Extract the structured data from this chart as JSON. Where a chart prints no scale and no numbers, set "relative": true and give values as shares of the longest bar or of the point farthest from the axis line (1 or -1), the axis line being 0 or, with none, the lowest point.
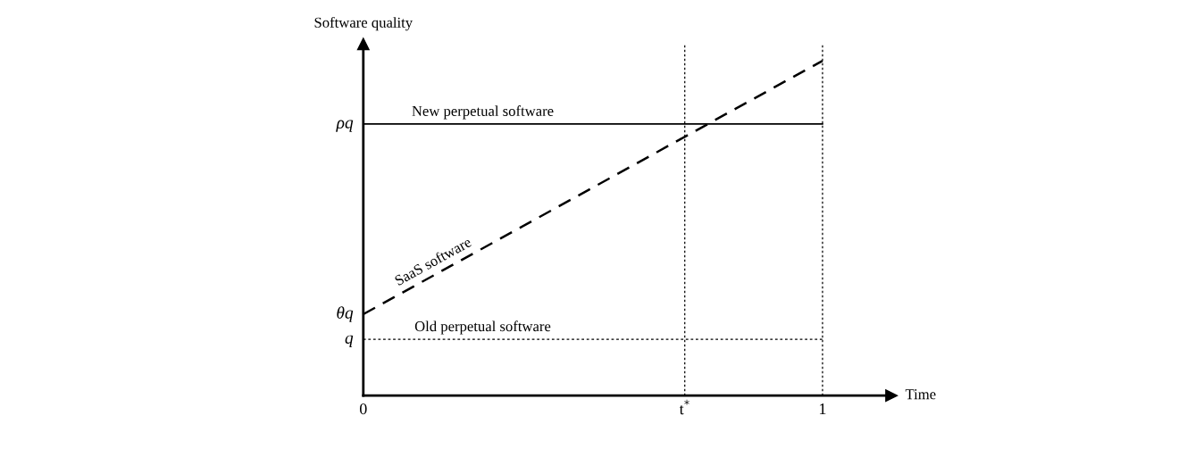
{
  "chart_data": {
    "type": "line",
    "relative": true,
    "xlabel": "Time",
    "ylabel": "Software quality",
    "x": [
      0,
      1
    ],
    "xlim": [
      0,
      1.15
    ],
    "xticks": [
      0,
      {
        "value": 0.7,
        "label": "t$^{*}$"
      },
      1
    ],
    "annotations": [
      "ρq",
      "θq",
      "q"
    ],
    "series": [
      {
        "name": "New perpetual software",
        "color": "#000000",
        "values": [
          0.811,
          0.811
        ],
        "line_style": "solid"
      },
      {
        "name": "SaaS software",
        "color": "#000000",
        "values": [
          0.243,
          1.0
        ],
        "line_style": "dashed"
      },
      {
        "name": "Old perpetual software",
        "color": "#000000",
        "values": [
          0.168,
          0.168
        ],
        "line_style": "dotted"
      }
    ],
    "ref_lines": [
      {
        "axis": "x",
        "value": 0.7,
        "line_style": "dotted",
        "color": "#000000"
      },
      {
        "axis": "x",
        "value": 1,
        "line_style": "dotted",
        "color": "#000000"
      }
    ],
    "grid": false,
    "legend": false
  }
}
